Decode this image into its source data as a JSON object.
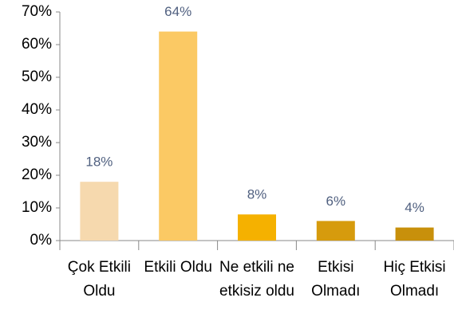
{
  "chart_data": {
    "type": "bar",
    "categories": [
      "Çok Etkili Oldu",
      "Etkili Oldu",
      "Ne etkili ne etkisiz oldu",
      "Etkisi Olmadı",
      "Hiç Etkisi Olmadı"
    ],
    "values": [
      18,
      64,
      8,
      6,
      4
    ],
    "value_labels": [
      "18%",
      "64%",
      "8%",
      "6%",
      "4%"
    ],
    "colors": [
      "#f6d9ae",
      "#fbc964",
      "#f5b100",
      "#d69b0d",
      "#c8900b"
    ],
    "ylim": [
      0,
      70
    ],
    "yticks": [
      {
        "value": 0,
        "label": "0%"
      },
      {
        "value": 10,
        "label": "10%"
      },
      {
        "value": 20,
        "label": "20%"
      },
      {
        "value": 30,
        "label": "30%"
      },
      {
        "value": 40,
        "label": "40%"
      },
      {
        "value": 50,
        "label": "50%"
      },
      {
        "value": 60,
        "label": "60%"
      },
      {
        "value": 70,
        "label": "70%"
      }
    ],
    "grid": false
  }
}
